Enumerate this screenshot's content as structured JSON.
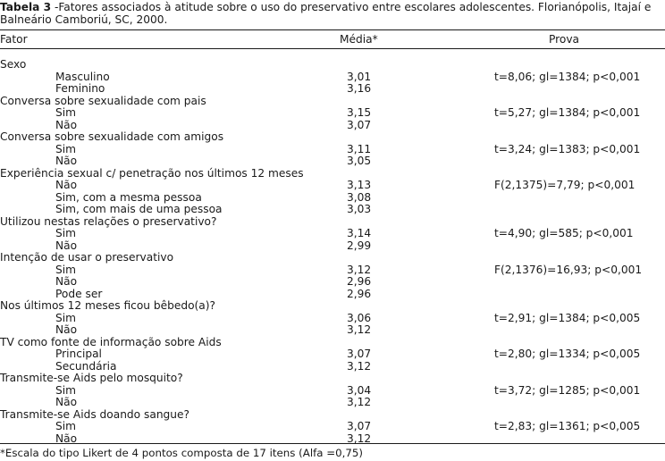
{
  "caption": {
    "label": "Tabela 3",
    "text": " -Fatores associados à atitude sobre o uso do preservativo entre escolares adolescentes. Florianópolis, Itajaí e Balneário Camboriú, SC, 2000."
  },
  "headers": {
    "fator": "Fator",
    "media": "Média*",
    "prova": "Prova"
  },
  "rows": [
    {
      "label": "Sexo",
      "indent": false,
      "media": "",
      "prova": ""
    },
    {
      "label": "Masculino",
      "indent": true,
      "media": "3,01",
      "prova": "t=8,06; gl=1384; p<0,001"
    },
    {
      "label": "Feminino",
      "indent": true,
      "media": "3,16",
      "prova": ""
    },
    {
      "label": "Conversa sobre sexualidade com pais",
      "indent": false,
      "media": "",
      "prova": ""
    },
    {
      "label": "Sim",
      "indent": true,
      "media": "3,15",
      "prova": "t=5,27; gl=1384; p<0,001"
    },
    {
      "label": "Não",
      "indent": true,
      "media": "3,07",
      "prova": ""
    },
    {
      "label": "Conversa sobre sexualidade com amigos",
      "indent": false,
      "media": "",
      "prova": ""
    },
    {
      "label": "Sim",
      "indent": true,
      "media": "3,11",
      "prova": "t=3,24; gl=1383; p<0,001"
    },
    {
      "label": "Não",
      "indent": true,
      "media": "3,05",
      "prova": ""
    },
    {
      "label": "Experiência sexual c/ penetração nos últimos 12 meses",
      "indent": false,
      "media": "",
      "prova": ""
    },
    {
      "label": "Não",
      "indent": true,
      "media": "3,13",
      "prova": "F(2,1375)=7,79; p<0,001"
    },
    {
      "label": "Sim, com a mesma pessoa",
      "indent": true,
      "media": "3,08",
      "prova": ""
    },
    {
      "label": "Sim, com mais de uma pessoa",
      "indent": true,
      "media": "3,03",
      "prova": ""
    },
    {
      "label": "Utilizou nestas relações o preservativo?",
      "indent": false,
      "media": "",
      "prova": ""
    },
    {
      "label": "Sim",
      "indent": true,
      "media": "3,14",
      "prova": "t=4,90; gl=585; p<0,001"
    },
    {
      "label": "Não",
      "indent": true,
      "media": "2,99",
      "prova": ""
    },
    {
      "label": "Intenção de usar o preservativo",
      "indent": false,
      "media": "",
      "prova": ""
    },
    {
      "label": "Sim",
      "indent": true,
      "media": "3,12",
      "prova": "F(2,1376)=16,93; p<0,001"
    },
    {
      "label": "Não",
      "indent": true,
      "media": "2,96",
      "prova": ""
    },
    {
      "label": "Pode ser",
      "indent": true,
      "media": "2,96",
      "prova": ""
    },
    {
      "label": "Nos últimos 12 meses ficou bêbedo(a)?",
      "indent": false,
      "media": "",
      "prova": ""
    },
    {
      "label": "Sim",
      "indent": true,
      "media": "3,06",
      "prova": "t=2,91; gl=1384; p<0,005"
    },
    {
      "label": "Não",
      "indent": true,
      "media": "3,12",
      "prova": ""
    },
    {
      "label": "TV como fonte de informação sobre Aids",
      "indent": false,
      "media": "",
      "prova": ""
    },
    {
      "label": "Principal",
      "indent": true,
      "media": "3,07",
      "prova": "t=2,80; gl=1334; p<0,005"
    },
    {
      "label": "Secundária",
      "indent": true,
      "media": "3,12",
      "prova": ""
    },
    {
      "label": "Transmite-se Aids pelo mosquito?",
      "indent": false,
      "media": "",
      "prova": ""
    },
    {
      "label": "Sim",
      "indent": true,
      "media": "3,04",
      "prova": "t=3,72; gl=1285; p<0,001"
    },
    {
      "label": "Não",
      "indent": true,
      "media": "3,12",
      "prova": ""
    },
    {
      "label": "Transmite-se Aids doando sangue?",
      "indent": false,
      "media": "",
      "prova": ""
    },
    {
      "label": "Sim",
      "indent": true,
      "media": "3,07",
      "prova": "t=2,83; gl=1361; p<0,005"
    },
    {
      "label": "Não",
      "indent": true,
      "media": "3,12",
      "prova": ""
    }
  ],
  "footnote": "*Escala do tipo Likert de 4 pontos composta de 17 itens (Alfa =0,75)"
}
